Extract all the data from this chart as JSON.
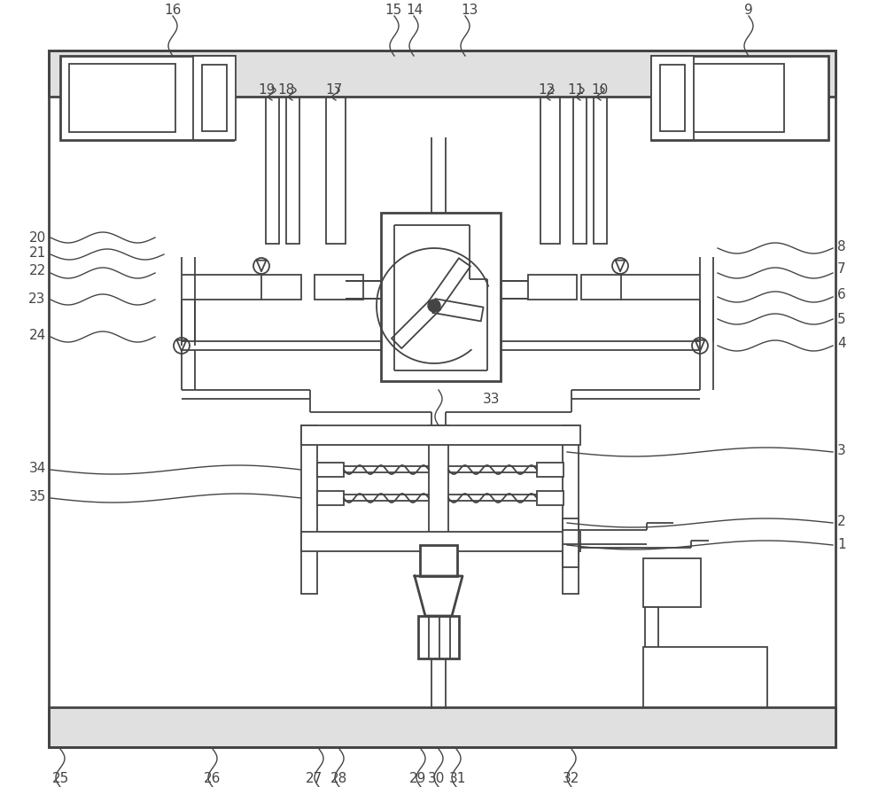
{
  "bg": "#ffffff",
  "lc": "#444444",
  "lw": 1.3,
  "lw2": 2.0,
  "lw3": 1.0
}
